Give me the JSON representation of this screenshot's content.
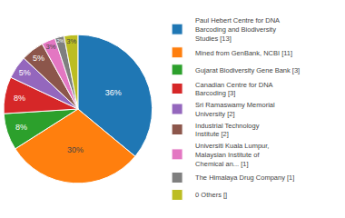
{
  "chart_data": {
    "type": "pie",
    "categories": [
      "Paul Hebert Centre for DNA\nBarcoding and Biodiversity\nStudies [13]",
      "Mined from GenBank, NCBI [11]",
      "Gujarat Biodiversity Gene Bank [3]",
      "Canadian Centre for DNA\nBarcoding [3]",
      "Sri Ramaswamy Memorial\nUniversity [2]",
      "Industrial Technology\nInstitute [2]",
      "Universiti Kuala Lumpur,\nMalaysian Institute of\nChemical an... [1]",
      "The Himalaya Drug Company [1]",
      "0 Others []"
    ],
    "values": [
      36,
      30,
      8,
      8,
      5,
      5,
      3,
      2,
      3
    ],
    "value_labels": [
      "36%",
      "30%",
      "8%",
      "8%",
      "5%",
      "5%",
      "3%",
      "2%",
      "3%"
    ],
    "data_labels": true,
    "legend": "right"
  }
}
